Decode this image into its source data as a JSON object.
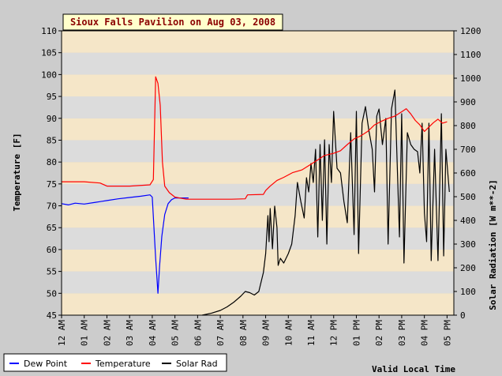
{
  "chart_data": {
    "type": "line",
    "title": "Sioux Falls Pavilion on Aug 03, 2008",
    "xlabel": "Valid Local Time",
    "ylabel_left": "Temperature [F]",
    "ylabel_right": "Solar Radiation [W m**-2]",
    "x_unit": "hour of day",
    "xlim": [
      0,
      17.3
    ],
    "ylim_left": [
      45,
      110
    ],
    "ylim_right": [
      0,
      1200
    ],
    "x_ticks": [
      {
        "value": 0,
        "label": "12 AM"
      },
      {
        "value": 1,
        "label": "01 AM"
      },
      {
        "value": 2,
        "label": "02 AM"
      },
      {
        "value": 3,
        "label": "03 AM"
      },
      {
        "value": 4,
        "label": "04 AM"
      },
      {
        "value": 5,
        "label": "05 AM"
      },
      {
        "value": 6,
        "label": "06 AM"
      },
      {
        "value": 7,
        "label": "07 AM"
      },
      {
        "value": 8,
        "label": "08 AM"
      },
      {
        "value": 9,
        "label": "09 AM"
      },
      {
        "value": 10,
        "label": "10 AM"
      },
      {
        "value": 11,
        "label": "11 AM"
      },
      {
        "value": 12,
        "label": "12 PM"
      },
      {
        "value": 13,
        "label": "01 PM"
      },
      {
        "value": 14,
        "label": "02 PM"
      },
      {
        "value": 15,
        "label": "03 PM"
      },
      {
        "value": 16,
        "label": "04 PM"
      },
      {
        "value": 17,
        "label": "05 PM"
      }
    ],
    "y_ticks_left": [
      45,
      50,
      55,
      60,
      65,
      70,
      75,
      80,
      85,
      90,
      95,
      100,
      105,
      110
    ],
    "y_ticks_right": [
      0,
      100,
      200,
      300,
      400,
      500,
      600,
      700,
      800,
      900,
      1000,
      1100,
      1200
    ],
    "legend_position": "bottom-left",
    "grid": "alternating horizontal bands",
    "colors": {
      "band_light": "#f5e6c8",
      "band_dark": "#dcdcdc",
      "page_bg": "#cccccc",
      "title_bg": "#ffffcc",
      "title_text": "#8b0000",
      "dew_point": "#0000ff",
      "temperature": "#ff0000",
      "solar_rad": "#000000"
    },
    "series": [
      {
        "name": "Dew Point",
        "axis": "left",
        "color": "#0000ff",
        "points": [
          [
            0,
            70.5
          ],
          [
            0.3,
            70.2
          ],
          [
            0.6,
            70.6
          ],
          [
            1.0,
            70.4
          ],
          [
            1.5,
            70.8
          ],
          [
            2.0,
            71.2
          ],
          [
            2.5,
            71.6
          ],
          [
            3.0,
            71.9
          ],
          [
            3.5,
            72.2
          ],
          [
            3.9,
            72.5
          ],
          [
            4.0,
            72.0
          ],
          [
            4.15,
            58
          ],
          [
            4.25,
            50
          ],
          [
            4.32,
            56
          ],
          [
            4.42,
            63
          ],
          [
            4.55,
            68
          ],
          [
            4.7,
            70.5
          ],
          [
            4.85,
            71.4
          ],
          [
            5.0,
            71.8
          ],
          [
            5.3,
            71.8
          ],
          [
            5.6,
            71.8
          ]
        ]
      },
      {
        "name": "Temperature",
        "axis": "left",
        "color": "#ff0000",
        "points": [
          [
            0,
            75.5
          ],
          [
            1.0,
            75.5
          ],
          [
            1.7,
            75.2
          ],
          [
            2.0,
            74.5
          ],
          [
            3.0,
            74.5
          ],
          [
            3.9,
            74.8
          ],
          [
            4.05,
            76
          ],
          [
            4.15,
            99.5
          ],
          [
            4.25,
            98
          ],
          [
            4.35,
            93
          ],
          [
            4.45,
            80
          ],
          [
            4.55,
            74.5
          ],
          [
            4.75,
            73
          ],
          [
            5.0,
            72
          ],
          [
            5.5,
            71.5
          ],
          [
            6.5,
            71.5
          ],
          [
            7.5,
            71.5
          ],
          [
            8.1,
            71.6
          ],
          [
            8.2,
            72.5
          ],
          [
            8.9,
            72.6
          ],
          [
            9.0,
            73.5
          ],
          [
            9.2,
            74.5
          ],
          [
            9.5,
            75.8
          ],
          [
            9.8,
            76.5
          ],
          [
            10.2,
            77.6
          ],
          [
            10.6,
            78.2
          ],
          [
            11.0,
            79.5
          ],
          [
            11.3,
            80.5
          ],
          [
            11.6,
            81.5
          ],
          [
            12.0,
            82.0
          ],
          [
            12.3,
            82.6
          ],
          [
            12.6,
            84.0
          ],
          [
            12.9,
            85.3
          ],
          [
            13.2,
            86.0
          ],
          [
            13.5,
            87.0
          ],
          [
            13.8,
            88.5
          ],
          [
            14.1,
            89.3
          ],
          [
            14.4,
            90.0
          ],
          [
            14.7,
            90.5
          ],
          [
            15.0,
            91.5
          ],
          [
            15.2,
            92.2
          ],
          [
            15.4,
            91.0
          ],
          [
            15.6,
            89.5
          ],
          [
            15.8,
            88.5
          ],
          [
            16.0,
            87.0
          ],
          [
            16.2,
            88.0
          ],
          [
            16.4,
            89.0
          ],
          [
            16.6,
            89.8
          ],
          [
            16.8,
            88.9
          ],
          [
            17.0,
            89.2
          ]
        ]
      },
      {
        "name": "Solar Rad",
        "axis": "right",
        "color": "#000000",
        "points": [
          [
            6.2,
            0
          ],
          [
            6.6,
            8
          ],
          [
            7.0,
            20
          ],
          [
            7.3,
            35
          ],
          [
            7.6,
            55
          ],
          [
            7.9,
            80
          ],
          [
            8.1,
            100
          ],
          [
            8.3,
            95
          ],
          [
            8.5,
            85
          ],
          [
            8.7,
            100
          ],
          [
            8.9,
            180
          ],
          [
            9.0,
            260
          ],
          [
            9.1,
            420
          ],
          [
            9.15,
            310
          ],
          [
            9.2,
            450
          ],
          [
            9.3,
            280
          ],
          [
            9.4,
            460
          ],
          [
            9.5,
            370
          ],
          [
            9.55,
            210
          ],
          [
            9.65,
            240
          ],
          [
            9.8,
            220
          ],
          [
            10.0,
            260
          ],
          [
            10.15,
            300
          ],
          [
            10.3,
            420
          ],
          [
            10.4,
            560
          ],
          [
            10.55,
            480
          ],
          [
            10.7,
            410
          ],
          [
            10.8,
            580
          ],
          [
            10.9,
            520
          ],
          [
            11.0,
            640
          ],
          [
            11.1,
            560
          ],
          [
            11.2,
            700
          ],
          [
            11.3,
            330
          ],
          [
            11.4,
            720
          ],
          [
            11.5,
            400
          ],
          [
            11.6,
            740
          ],
          [
            11.7,
            300
          ],
          [
            11.8,
            720
          ],
          [
            11.9,
            560
          ],
          [
            12.0,
            860
          ],
          [
            12.15,
            620
          ],
          [
            12.3,
            600
          ],
          [
            12.45,
            480
          ],
          [
            12.6,
            390
          ],
          [
            12.75,
            770
          ],
          [
            12.9,
            340
          ],
          [
            13.0,
            860
          ],
          [
            13.1,
            260
          ],
          [
            13.25,
            810
          ],
          [
            13.4,
            880
          ],
          [
            13.55,
            780
          ],
          [
            13.7,
            700
          ],
          [
            13.8,
            520
          ],
          [
            13.9,
            840
          ],
          [
            14.0,
            870
          ],
          [
            14.15,
            720
          ],
          [
            14.3,
            830
          ],
          [
            14.4,
            300
          ],
          [
            14.55,
            870
          ],
          [
            14.7,
            950
          ],
          [
            14.8,
            640
          ],
          [
            14.9,
            330
          ],
          [
            15.0,
            850
          ],
          [
            15.1,
            220
          ],
          [
            15.25,
            770
          ],
          [
            15.4,
            720
          ],
          [
            15.55,
            700
          ],
          [
            15.7,
            690
          ],
          [
            15.8,
            600
          ],
          [
            15.9,
            810
          ],
          [
            16.0,
            430
          ],
          [
            16.1,
            310
          ],
          [
            16.2,
            810
          ],
          [
            16.3,
            230
          ],
          [
            16.45,
            700
          ],
          [
            16.6,
            230
          ],
          [
            16.75,
            850
          ],
          [
            16.85,
            250
          ],
          [
            16.95,
            700
          ],
          [
            17.05,
            580
          ],
          [
            17.1,
            520
          ]
        ]
      }
    ]
  }
}
